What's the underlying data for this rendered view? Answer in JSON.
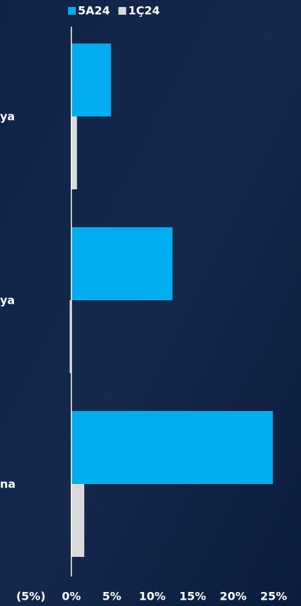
{
  "chart_data": {
    "type": "bar",
    "orientation": "horizontal",
    "categories": [
      "ya",
      "ya",
      "na"
    ],
    "series": [
      {
        "name": "5A24",
        "color": "#00aeef",
        "values": [
          4.9,
          12.5,
          24.9
        ]
      },
      {
        "name": "1Ç24",
        "color": "#d9d9d9",
        "values": [
          0.7,
          -0.2,
          1.6
        ]
      }
    ],
    "xlim": [
      -5,
      25
    ],
    "xticks": [
      {
        "value": -5,
        "label": "(5%)"
      },
      {
        "value": 0,
        "label": "0%"
      },
      {
        "value": 5,
        "label": "5%"
      },
      {
        "value": 10,
        "label": "10%"
      },
      {
        "value": 15,
        "label": "15%"
      },
      {
        "value": 20,
        "label": "20%"
      },
      {
        "value": 25,
        "label": "25%"
      }
    ],
    "legend": "top"
  }
}
